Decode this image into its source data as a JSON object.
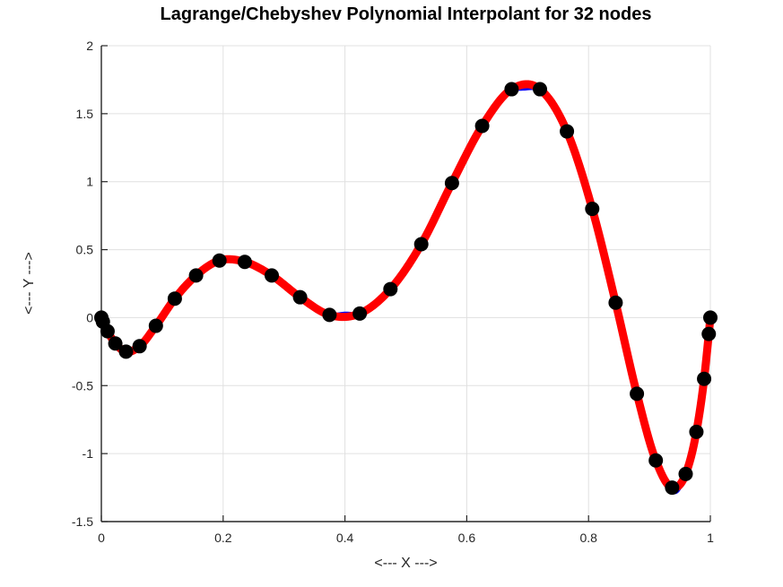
{
  "chart_data": {
    "type": "line",
    "title": "Lagrange/Chebyshev Polynomial Interpolant for 32 nodes",
    "xlabel": "<--- X --->",
    "ylabel": "<--- Y --->",
    "xlim": [
      0,
      1
    ],
    "ylim": [
      -1.5,
      2
    ],
    "grid": true,
    "x_ticks": {
      "values": [
        0,
        0.2,
        0.4,
        0.6,
        0.8,
        1
      ],
      "labels": [
        "0",
        "0.2",
        "0.4",
        "0.6",
        "0.8",
        "1"
      ]
    },
    "y_ticks": {
      "values": [
        -1.5,
        -1,
        -0.5,
        0,
        0.5,
        1,
        1.5,
        2
      ],
      "labels": [
        "-1.5",
        "-1",
        "-0.5",
        "0",
        "0.5",
        "1",
        "1.5",
        "2"
      ]
    },
    "series": [
      {
        "name": "true-function",
        "type": "line",
        "color": "#0000ff",
        "width": 4
      },
      {
        "name": "chebyshev-interpolant",
        "type": "line",
        "color": "#ff0000",
        "width": 9
      },
      {
        "name": "interpolation-nodes",
        "type": "scatter",
        "color": "#000000",
        "marker_radius": 8
      }
    ],
    "nodes": {
      "count": 32,
      "x": [
        0,
        0.00257,
        0.01023,
        0.02294,
        0.04052,
        0.06279,
        0.08957,
        0.12062,
        0.15552,
        0.19395,
        0.23552,
        0.2798,
        0.32635,
        0.37467,
        0.42429,
        0.47468,
        0.52532,
        0.57571,
        0.62533,
        0.67365,
        0.7202,
        0.76448,
        0.80605,
        0.84448,
        0.87938,
        0.91043,
        0.93721,
        0.95948,
        0.97706,
        0.98977,
        0.99743,
        1
      ],
      "y": [
        0.0,
        -0.03,
        -0.1,
        -0.19,
        -0.25,
        -0.21,
        -0.06,
        0.14,
        0.31,
        0.42,
        0.41,
        0.31,
        0.15,
        0.02,
        0.03,
        0.21,
        0.54,
        0.99,
        1.41,
        1.68,
        1.68,
        1.37,
        0.8,
        0.11,
        -0.56,
        -1.05,
        -1.25,
        -1.15,
        -0.84,
        -0.45,
        -0.12,
        0.0
      ]
    },
    "function_deviation_bumps": [
      {
        "cx": 0.4,
        "dy": 0.025,
        "s": 0.018
      },
      {
        "cx": 0.696,
        "dy": -0.033,
        "s": 0.02
      },
      {
        "cx": 0.9425,
        "dy": -0.035,
        "s": 0.011
      }
    ],
    "colors": {
      "axis": "#262626",
      "grid": "#e0e0e0",
      "text": "#262626",
      "title": "#000000",
      "background": "#ffffff"
    }
  }
}
